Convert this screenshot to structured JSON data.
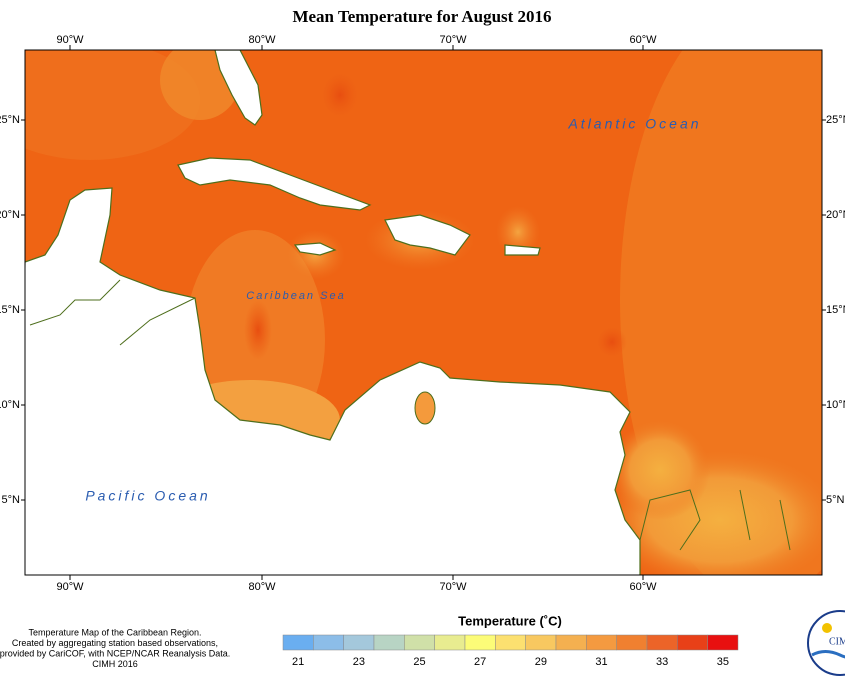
{
  "title": "Mean Temperature for August 2016",
  "longitude_labels": [
    "90°W",
    "80°W",
    "70°W",
    "60°W"
  ],
  "latitude_labels": [
    "25°N",
    "20°N",
    "15°N",
    "10°N",
    "5°N"
  ],
  "ocean_labels": {
    "atlantic": "Atlantic Ocean",
    "caribbean": "Caribbean Sea",
    "pacific": "Pacific Ocean"
  },
  "colorbar": {
    "title": "Temperature (˚C)",
    "ticks": [
      21,
      23,
      25,
      27,
      29,
      31,
      33,
      35
    ],
    "colors": [
      "#6aaef0",
      "#8cbde8",
      "#a4c8dc",
      "#b8d4c4",
      "#d0e0a8",
      "#e8ec90",
      "#fcfc78",
      "#fce070",
      "#f8c860",
      "#f4b050",
      "#f49a40",
      "#f08030",
      "#ec6428",
      "#e84018",
      "#e81010"
    ]
  },
  "footer": [
    "Temperature Map of the Caribbean Region.",
    "Created by aggregating station based observations,",
    "provided by CariCOF, with NCEP/NCAR Reanalysis Data.",
    "CIMH 2016"
  ],
  "logo_text": "CIMH"
}
